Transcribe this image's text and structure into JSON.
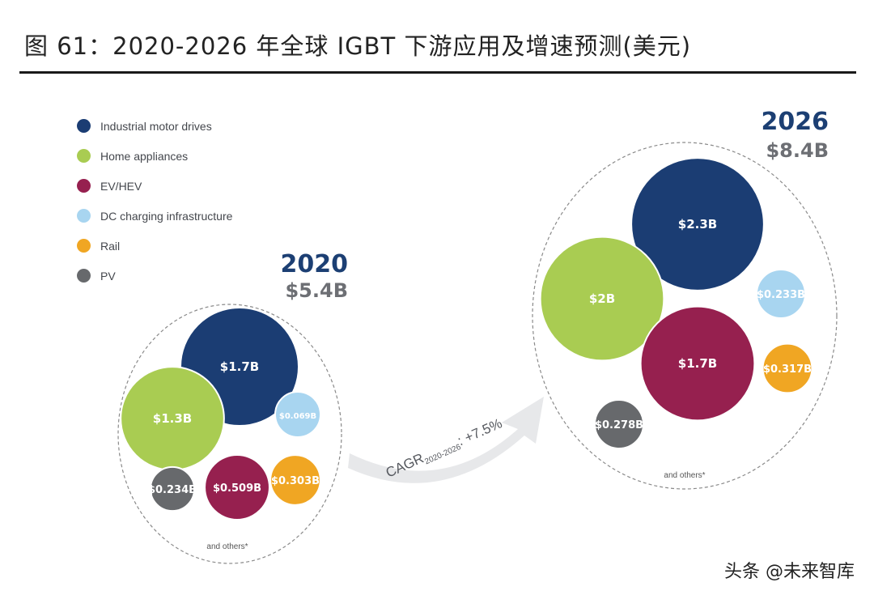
{
  "header": {
    "title": "图 61：2020-2026 年全球 IGBT 下游应用及增速预测(美元)"
  },
  "chart_data": {
    "type": "bubble",
    "title": "2020-2026 年全球 IGBT 下游应用及增速预测(美元)",
    "legend": [
      {
        "name": "Industrial motor drives",
        "color": "#1b3d73"
      },
      {
        "name": "Home appliances",
        "color": "#a9cc52"
      },
      {
        "name": "EV/HEV",
        "color": "#96204f"
      },
      {
        "name": "DC charging infrastructure",
        "color": "#a8d5f0"
      },
      {
        "name": "Rail",
        "color": "#f0a623"
      },
      {
        "name": "PV",
        "color": "#67696c"
      }
    ],
    "groups": [
      {
        "year": "2020",
        "total": "$5.4B",
        "note": "and others*",
        "bubbles": [
          {
            "segment": "Industrial motor drives",
            "value": 1.7,
            "label": "$1.7B"
          },
          {
            "segment": "Home appliances",
            "value": 1.3,
            "label": "$1.3B"
          },
          {
            "segment": "DC charging infrastructure",
            "value": 0.069,
            "label": "$0.069B"
          },
          {
            "segment": "PV",
            "value": 0.234,
            "label": "$0.234B"
          },
          {
            "segment": "EV/HEV",
            "value": 0.509,
            "label": "$0.509B"
          },
          {
            "segment": "Rail",
            "value": 0.303,
            "label": "$0.303B"
          }
        ]
      },
      {
        "year": "2026",
        "total": "$8.4B",
        "note": "and others*",
        "bubbles": [
          {
            "segment": "Industrial motor drives",
            "value": 2.3,
            "label": "$2.3B"
          },
          {
            "segment": "Home appliances",
            "value": 2.0,
            "label": "$2B"
          },
          {
            "segment": "DC charging infrastructure",
            "value": 0.233,
            "label": "$0.233B"
          },
          {
            "segment": "EV/HEV",
            "value": 1.7,
            "label": "$1.7B"
          },
          {
            "segment": "Rail",
            "value": 0.317,
            "label": "$0.317B"
          },
          {
            "segment": "PV",
            "value": 0.278,
            "label": "$0.278B"
          }
        ]
      }
    ],
    "arrow": {
      "label": "CAGR",
      "subscript": "2020-2026",
      "suffix": ": +7.5%"
    }
  },
  "watermark": {
    "text": "头条 @未来智库"
  }
}
